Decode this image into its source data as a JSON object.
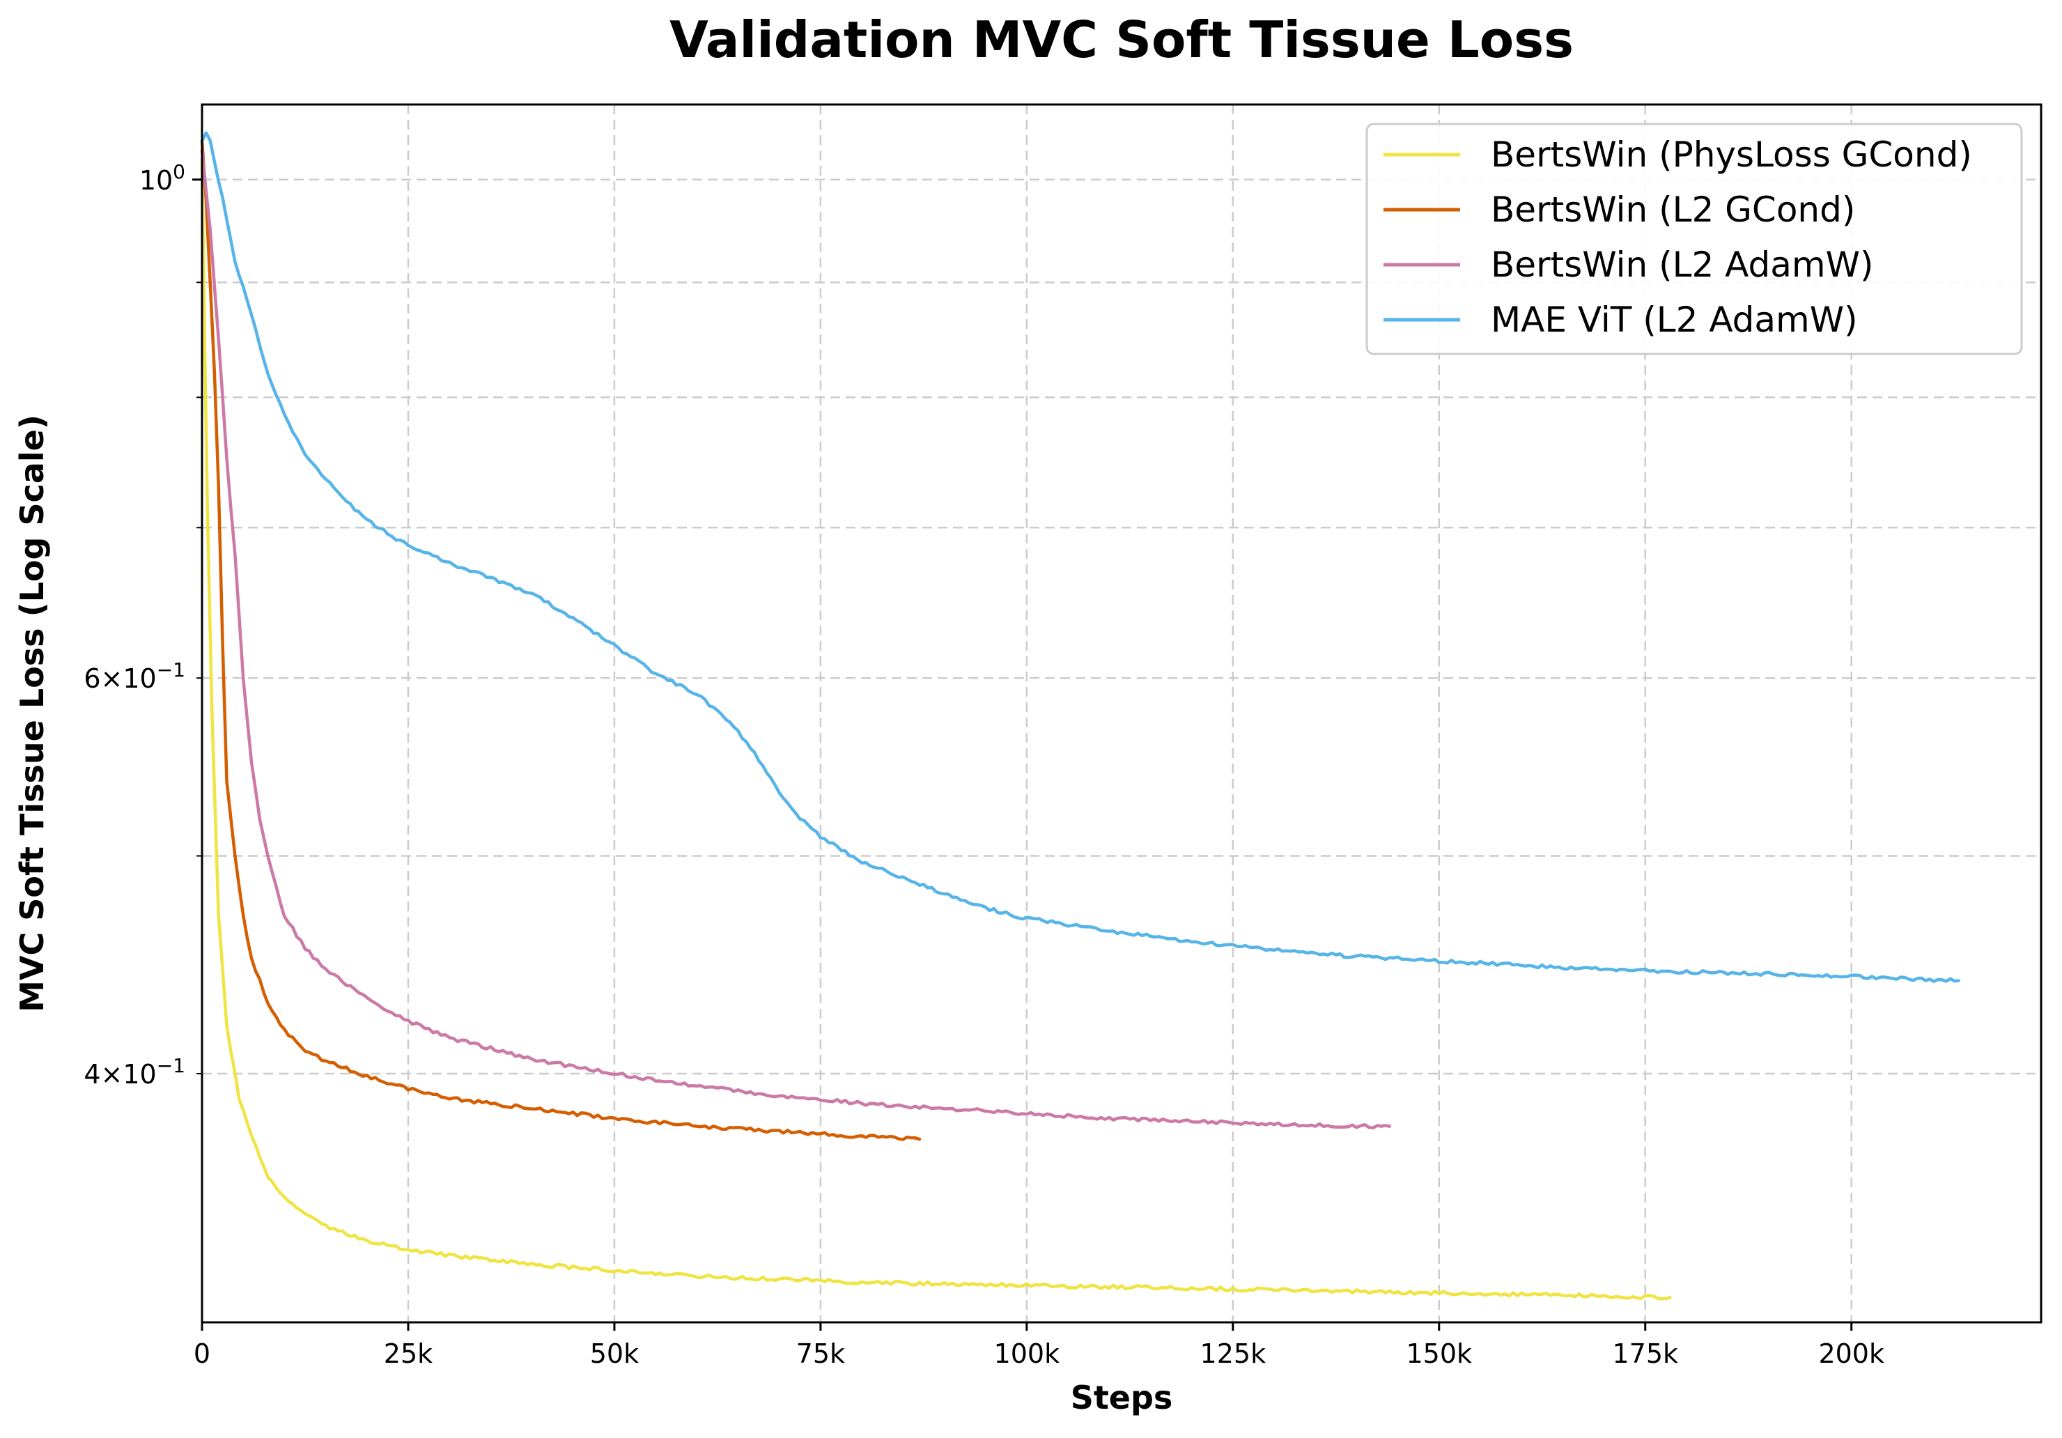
{
  "chart_data": {
    "type": "line",
    "title": "Validation MVC Soft Tissue Loss",
    "xlabel": "Steps",
    "ylabel": "MVC Soft Tissue Loss (Log Scale)",
    "yscale": "log",
    "xlim": [
      0,
      223000
    ],
    "ylim": [
      0.31,
      1.08
    ],
    "grid": true,
    "legend_position": "top-right",
    "x_ticks": [
      {
        "value": 0,
        "label": "0"
      },
      {
        "value": 25000,
        "label": "25k"
      },
      {
        "value": 50000,
        "label": "50k"
      },
      {
        "value": 75000,
        "label": "75k"
      },
      {
        "value": 100000,
        "label": "100k"
      },
      {
        "value": 125000,
        "label": "125k"
      },
      {
        "value": 150000,
        "label": "150k"
      },
      {
        "value": 175000,
        "label": "175k"
      },
      {
        "value": 200000,
        "label": "200k"
      }
    ],
    "y_ticks_major": [
      {
        "value": 1.0,
        "base": "10",
        "exp": "0"
      }
    ],
    "y_ticks_minor": [
      {
        "value": 0.4,
        "mant": "4",
        "base": "10",
        "exp": "−1"
      },
      {
        "value": 0.6,
        "mant": "6",
        "base": "10",
        "exp": "−1"
      }
    ],
    "y_grid_extra": [
      0.5,
      0.7,
      0.8,
      0.9
    ],
    "series": [
      {
        "name": "BertsWin (PhysLoss GCond)",
        "color": "#f0e442",
        "x": [
          0,
          300,
          700,
          1200,
          2000,
          3000,
          4500,
          6000,
          8000,
          10000,
          12500,
          15000,
          20000,
          25000,
          30000,
          40000,
          50000,
          60000,
          70000,
          80000,
          90000,
          100000,
          110000,
          120000,
          130000,
          140000,
          150000,
          160000,
          170000,
          178000
        ],
        "y": [
          1.02,
          0.85,
          0.7,
          0.58,
          0.47,
          0.42,
          0.39,
          0.375,
          0.36,
          0.352,
          0.346,
          0.342,
          0.337,
          0.334,
          0.332,
          0.329,
          0.327,
          0.325,
          0.324,
          0.323,
          0.3225,
          0.322,
          0.3215,
          0.321,
          0.3205,
          0.32,
          0.3195,
          0.319,
          0.3185,
          0.318
        ]
      },
      {
        "name": "BertsWin (L2 GCond)",
        "color": "#d55e00",
        "x": [
          0,
          500,
          1000,
          1500,
          2000,
          2500,
          3000,
          4000,
          5000,
          6000,
          8000,
          10000,
          12500,
          15000,
          20000,
          25000,
          30000,
          40000,
          50000,
          60000,
          70000,
          80000,
          87000
        ],
        "y": [
          1.04,
          0.98,
          0.9,
          0.82,
          0.73,
          0.62,
          0.54,
          0.5,
          0.47,
          0.45,
          0.43,
          0.418,
          0.41,
          0.405,
          0.399,
          0.394,
          0.39,
          0.386,
          0.382,
          0.379,
          0.377,
          0.375,
          0.374
        ]
      },
      {
        "name": "BertsWin (L2 AdamW)",
        "color": "#cc79a7",
        "x": [
          0,
          1000,
          2000,
          3000,
          4000,
          5000,
          6000,
          7000,
          8000,
          10000,
          12500,
          15000,
          20000,
          25000,
          30000,
          40000,
          50000,
          60000,
          70000,
          80000,
          90000,
          100000,
          110000,
          120000,
          130000,
          140000,
          144000
        ],
        "y": [
          1.03,
          0.95,
          0.85,
          0.75,
          0.68,
          0.6,
          0.55,
          0.52,
          0.5,
          0.47,
          0.455,
          0.445,
          0.432,
          0.422,
          0.415,
          0.406,
          0.4,
          0.395,
          0.391,
          0.388,
          0.386,
          0.384,
          0.382,
          0.381,
          0.38,
          0.379,
          0.379
        ]
      },
      {
        "name": "MAE ViT (L2 AdamW)",
        "color": "#56b4e9",
        "x": [
          0,
          500,
          1000,
          2000,
          3000,
          4000,
          6000,
          8000,
          10000,
          12500,
          15000,
          20000,
          25000,
          30000,
          35000,
          40000,
          45000,
          50000,
          55000,
          60000,
          62500,
          65000,
          67500,
          70000,
          72500,
          75000,
          80000,
          85000,
          90000,
          95000,
          100000,
          110000,
          120000,
          130000,
          140000,
          150000,
          160000,
          170000,
          180000,
          190000,
          200000,
          213000
        ],
        "y": [
          1.04,
          1.05,
          1.04,
          1.0,
          0.96,
          0.92,
          0.87,
          0.82,
          0.785,
          0.755,
          0.735,
          0.705,
          0.687,
          0.675,
          0.665,
          0.654,
          0.638,
          0.62,
          0.603,
          0.59,
          0.58,
          0.568,
          0.552,
          0.534,
          0.52,
          0.51,
          0.497,
          0.489,
          0.481,
          0.474,
          0.469,
          0.463,
          0.458,
          0.454,
          0.451,
          0.449,
          0.447,
          0.445,
          0.444,
          0.443,
          0.442,
          0.44
        ]
      }
    ]
  }
}
